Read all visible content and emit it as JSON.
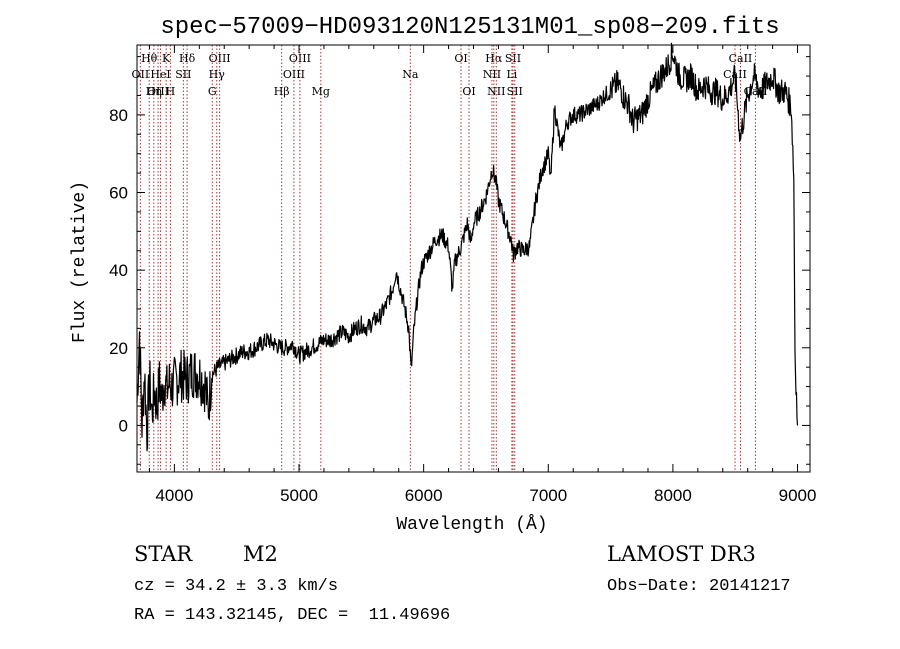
{
  "chart_data": {
    "type": "line",
    "title": "spec−57009−HD093120N125131M01_sp08−209.fits",
    "xlabel": "Wavelength (Å)",
    "ylabel": "Flux (relative)",
    "xlim": [
      3700,
      9100
    ],
    "ylim": [
      -12,
      98
    ],
    "x_ticks": [
      4000,
      5000,
      6000,
      7000,
      8000,
      9000
    ],
    "y_ticks": [
      0,
      20,
      40,
      60,
      80
    ],
    "series": [
      {
        "name": "flux",
        "points": [
          [
            3700,
            6
          ],
          [
            3720,
            24
          ],
          [
            3740,
            0
          ],
          [
            3760,
            14
          ],
          [
            3780,
            -2
          ],
          [
            3800,
            12
          ],
          [
            3820,
            3
          ],
          [
            3840,
            9
          ],
          [
            3860,
            5
          ],
          [
            3880,
            11
          ],
          [
            3900,
            7
          ],
          [
            3920,
            12
          ],
          [
            3940,
            9
          ],
          [
            3960,
            11
          ],
          [
            3980,
            10
          ],
          [
            4000,
            11
          ],
          [
            4050,
            13
          ],
          [
            4100,
            12
          ],
          [
            4150,
            14
          ],
          [
            4200,
            13
          ],
          [
            4250,
            10
          ],
          [
            4270,
            4
          ],
          [
            4300,
            13
          ],
          [
            4350,
            15
          ],
          [
            4400,
            16
          ],
          [
            4450,
            17
          ],
          [
            4500,
            18
          ],
          [
            4550,
            19
          ],
          [
            4600,
            19
          ],
          [
            4650,
            20
          ],
          [
            4700,
            21
          ],
          [
            4750,
            22
          ],
          [
            4800,
            21
          ],
          [
            4850,
            20
          ],
          [
            4900,
            20
          ],
          [
            4950,
            21
          ],
          [
            5000,
            18
          ],
          [
            5050,
            19
          ],
          [
            5100,
            20
          ],
          [
            5150,
            21
          ],
          [
            5200,
            22
          ],
          [
            5250,
            22
          ],
          [
            5300,
            23
          ],
          [
            5350,
            24
          ],
          [
            5400,
            23
          ],
          [
            5450,
            25
          ],
          [
            5500,
            26
          ],
          [
            5550,
            25
          ],
          [
            5600,
            27
          ],
          [
            5650,
            28
          ],
          [
            5700,
            31
          ],
          [
            5750,
            35
          ],
          [
            5780,
            40
          ],
          [
            5800,
            37
          ],
          [
            5850,
            30
          ],
          [
            5880,
            25
          ],
          [
            5900,
            14
          ],
          [
            5920,
            24
          ],
          [
            5950,
            33
          ],
          [
            5980,
            40
          ],
          [
            6000,
            42
          ],
          [
            6050,
            45
          ],
          [
            6100,
            48
          ],
          [
            6150,
            49
          ],
          [
            6200,
            46
          ],
          [
            6230,
            35
          ],
          [
            6250,
            42
          ],
          [
            6300,
            46
          ],
          [
            6350,
            52
          ],
          [
            6380,
            47
          ],
          [
            6400,
            52
          ],
          [
            6450,
            55
          ],
          [
            6500,
            59
          ],
          [
            6550,
            66
          ],
          [
            6580,
            63
          ],
          [
            6600,
            58
          ],
          [
            6650,
            53
          ],
          [
            6700,
            48
          ],
          [
            6720,
            44
          ],
          [
            6750,
            46
          ],
          [
            6800,
            45
          ],
          [
            6850,
            46
          ],
          [
            6900,
            58
          ],
          [
            6950,
            66
          ],
          [
            6980,
            68
          ],
          [
            7000,
            70
          ],
          [
            7020,
            63
          ],
          [
            7050,
            82
          ],
          [
            7100,
            71
          ],
          [
            7150,
            78
          ],
          [
            7200,
            80
          ],
          [
            7250,
            80
          ],
          [
            7300,
            81
          ],
          [
            7350,
            82
          ],
          [
            7400,
            83
          ],
          [
            7450,
            85
          ],
          [
            7500,
            86
          ],
          [
            7550,
            88
          ],
          [
            7580,
            87
          ],
          [
            7600,
            85
          ],
          [
            7650,
            82
          ],
          [
            7680,
            78
          ],
          [
            7700,
            79
          ],
          [
            7750,
            80
          ],
          [
            7800,
            84
          ],
          [
            7850,
            87
          ],
          [
            7900,
            90
          ],
          [
            7950,
            92
          ],
          [
            8000,
            96
          ],
          [
            8050,
            90
          ],
          [
            8100,
            89
          ],
          [
            8150,
            90
          ],
          [
            8200,
            86
          ],
          [
            8250,
            88
          ],
          [
            8300,
            86
          ],
          [
            8350,
            86
          ],
          [
            8400,
            84
          ],
          [
            8450,
            86
          ],
          [
            8500,
            90
          ],
          [
            8540,
            74
          ],
          [
            8600,
            85
          ],
          [
            8650,
            90
          ],
          [
            8700,
            86
          ],
          [
            8750,
            88
          ],
          [
            8800,
            90
          ],
          [
            8850,
            86
          ],
          [
            8900,
            86
          ],
          [
            8950,
            82
          ],
          [
            8970,
            64
          ],
          [
            8980,
            19
          ],
          [
            9000,
            0
          ]
        ]
      }
    ],
    "line_markers": [
      {
        "name": "Hθ",
        "wavelength": 3798,
        "row": 1
      },
      {
        "name": "OII",
        "wavelength": 3727,
        "row": 2
      },
      {
        "name": "OIII",
        "wavelength": 3869,
        "row": 3
      },
      {
        "name": "K",
        "wavelength": 3934,
        "row": 1
      },
      {
        "name": "HeI",
        "wavelength": 3889,
        "row": 2
      },
      {
        "name": "Hη",
        "wavelength": 3835,
        "row": 3
      },
      {
        "name": "Hδ",
        "wavelength": 4102,
        "row": 1
      },
      {
        "name": "SII",
        "wavelength": 4072,
        "row": 2
      },
      {
        "name": "H",
        "wavelength": 3968,
        "row": 3
      },
      {
        "name": "OIII",
        "wavelength": 4363,
        "row": 1
      },
      {
        "name": "Hγ",
        "wavelength": 4340,
        "row": 2
      },
      {
        "name": "G",
        "wavelength": 4304,
        "row": 3
      },
      {
        "name": "OIII",
        "wavelength": 5007,
        "row": 1
      },
      {
        "name": "OIII",
        "wavelength": 4959,
        "row": 2
      },
      {
        "name": "Hβ",
        "wavelength": 4861,
        "row": 3
      },
      {
        "name": "Mg",
        "wavelength": 5175,
        "row": 3
      },
      {
        "name": "Na",
        "wavelength": 5893,
        "row": 2
      },
      {
        "name": "OI",
        "wavelength": 6300,
        "row": 1
      },
      {
        "name": "OI",
        "wavelength": 6364,
        "row": 3
      },
      {
        "name": "Hα",
        "wavelength": 6563,
        "row": 1
      },
      {
        "name": "NII",
        "wavelength": 6548,
        "row": 2
      },
      {
        "name": "NII",
        "wavelength": 6583,
        "row": 3
      },
      {
        "name": "SII",
        "wavelength": 6717,
        "row": 1
      },
      {
        "name": "Li",
        "wavelength": 6708,
        "row": 2
      },
      {
        "name": "SII",
        "wavelength": 6731,
        "row": 3
      },
      {
        "name": "CaII",
        "wavelength": 8542,
        "row": 1
      },
      {
        "name": "CaII",
        "wavelength": 8498,
        "row": 2
      },
      {
        "name": "CaII",
        "wavelength": 8662,
        "row": 3
      }
    ]
  },
  "info": {
    "object_class": "STAR",
    "subclass": "M2",
    "survey": "LAMOST DR3",
    "redshift": "cz = 34.2 ± 3.3 km/s",
    "obs_date": "Obs−Date: 20141217",
    "coords": "RA = 143.32145, DEC =  11.49696"
  }
}
